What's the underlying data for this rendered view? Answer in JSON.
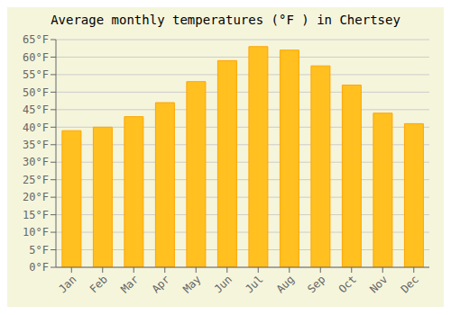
{
  "chart_data": {
    "type": "bar",
    "title": "Average monthly temperatures (°F ) in Chertsey",
    "categories": [
      "Jan",
      "Feb",
      "Mar",
      "Apr",
      "May",
      "Jun",
      "Jul",
      "Aug",
      "Sep",
      "Oct",
      "Nov",
      "Dec"
    ],
    "values": [
      39,
      40,
      43,
      47,
      53,
      59,
      63,
      62,
      57.5,
      52,
      44,
      41
    ],
    "color": "#FFC020",
    "ylim": [
      0,
      65
    ],
    "yticks": [
      {
        "value": 0,
        "label": "0°F"
      },
      {
        "value": 5,
        "label": "5°F"
      },
      {
        "value": 10,
        "label": "10°F"
      },
      {
        "value": 15,
        "label": "15°F"
      },
      {
        "value": 20,
        "label": "20°F"
      },
      {
        "value": 25,
        "label": "25°F"
      },
      {
        "value": 30,
        "label": "30°F"
      },
      {
        "value": 35,
        "label": "35°F"
      },
      {
        "value": 40,
        "label": "40°F"
      },
      {
        "value": 45,
        "label": "45°F"
      },
      {
        "value": 50,
        "label": "50°F"
      },
      {
        "value": 55,
        "label": "55°F"
      },
      {
        "value": 60,
        "label": "60°F"
      },
      {
        "value": 65,
        "label": "65°F"
      }
    ],
    "grid": true
  }
}
